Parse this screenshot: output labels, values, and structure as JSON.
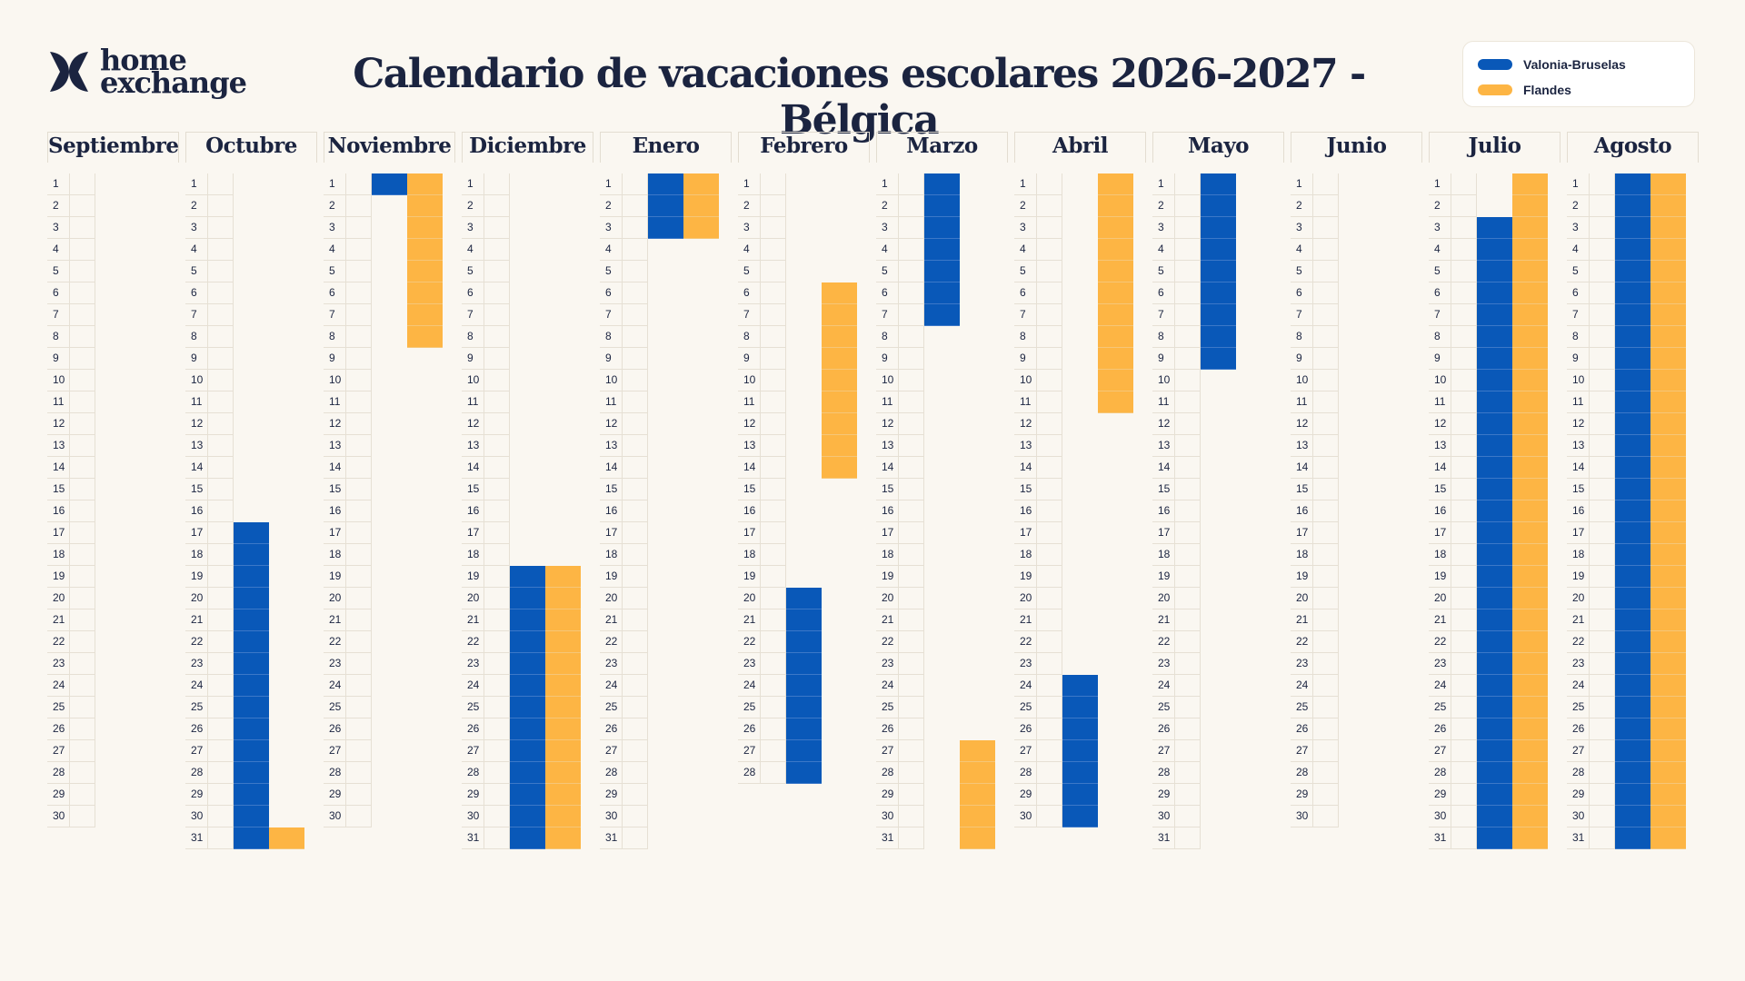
{
  "logo": {
    "line1": "home",
    "line2": "exchange"
  },
  "title": "Calendario de vacaciones escolares 2026-2027 - Bélgica",
  "legend": [
    {
      "label": "Valonia-Bruselas",
      "color": "#0958b8"
    },
    {
      "label": "Flandes",
      "color": "#fdb544"
    }
  ],
  "months": [
    {
      "name": "Septiembre",
      "days": 30,
      "wallonia": [],
      "flanders": []
    },
    {
      "name": "Octubre",
      "days": 31,
      "wallonia": [
        [
          17,
          31
        ]
      ],
      "flanders": [
        [
          31,
          31
        ]
      ]
    },
    {
      "name": "Noviembre",
      "days": 30,
      "wallonia": [
        [
          1,
          1
        ]
      ],
      "flanders": [
        [
          1,
          8
        ]
      ]
    },
    {
      "name": "Diciembre",
      "days": 31,
      "wallonia": [
        [
          19,
          31
        ]
      ],
      "flanders": [
        [
          19,
          31
        ]
      ]
    },
    {
      "name": "Enero",
      "days": 31,
      "wallonia": [
        [
          1,
          3
        ]
      ],
      "flanders": [
        [
          1,
          3
        ]
      ]
    },
    {
      "name": "Febrero",
      "days": 28,
      "wallonia": [
        [
          20,
          28
        ]
      ],
      "flanders": [
        [
          6,
          14
        ]
      ]
    },
    {
      "name": "Marzo",
      "days": 31,
      "wallonia": [
        [
          1,
          7
        ]
      ],
      "flanders": [
        [
          27,
          31
        ]
      ]
    },
    {
      "name": "Abril",
      "days": 30,
      "wallonia": [
        [
          24,
          30
        ]
      ],
      "flanders": [
        [
          1,
          11
        ]
      ]
    },
    {
      "name": "Mayo",
      "days": 31,
      "wallonia": [
        [
          1,
          9
        ]
      ],
      "flanders": []
    },
    {
      "name": "Junio",
      "days": 30,
      "wallonia": [],
      "flanders": []
    },
    {
      "name": "Julio",
      "days": 31,
      "wallonia": [
        [
          3,
          31
        ]
      ],
      "flanders": [
        [
          1,
          31
        ]
      ]
    },
    {
      "name": "Agosto",
      "days": 31,
      "wallonia": [
        [
          1,
          31
        ]
      ],
      "flanders": [
        [
          1,
          31
        ]
      ]
    }
  ]
}
